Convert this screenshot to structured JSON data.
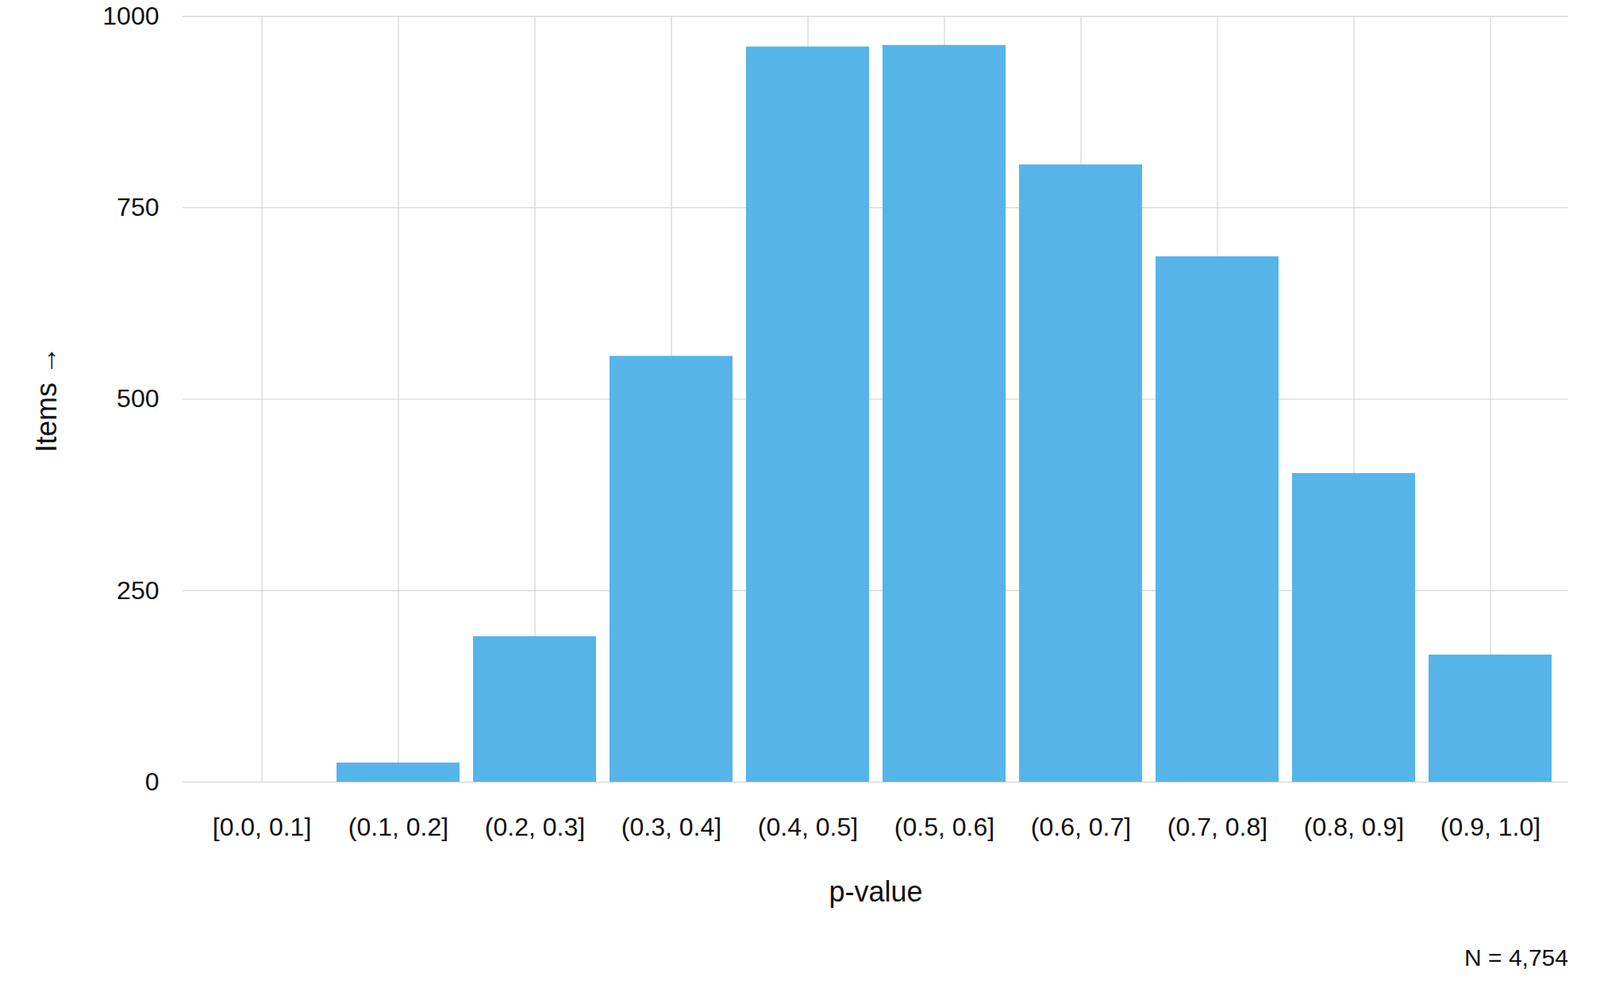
{
  "chart_data": {
    "type": "bar",
    "categories": [
      "[0.0, 0.1]",
      "(0.1, 0.2]",
      "(0.2, 0.3]",
      "(0.3, 0.4]",
      "(0.4, 0.5]",
      "(0.5, 0.6]",
      "(0.6, 0.7]",
      "(0.7, 0.8]",
      "(0.8, 0.9]",
      "(0.9, 1.0]"
    ],
    "values": [
      0,
      25,
      190,
      556,
      960,
      962,
      806,
      686,
      403,
      166
    ],
    "color": "#56b4e9",
    "x_label": "p-value",
    "y_label": "Items",
    "caption": "N = 4,754",
    "ylim": [
      0,
      1000
    ],
    "yticks": [
      0,
      250,
      500,
      750,
      1000
    ],
    "grid": true
  }
}
